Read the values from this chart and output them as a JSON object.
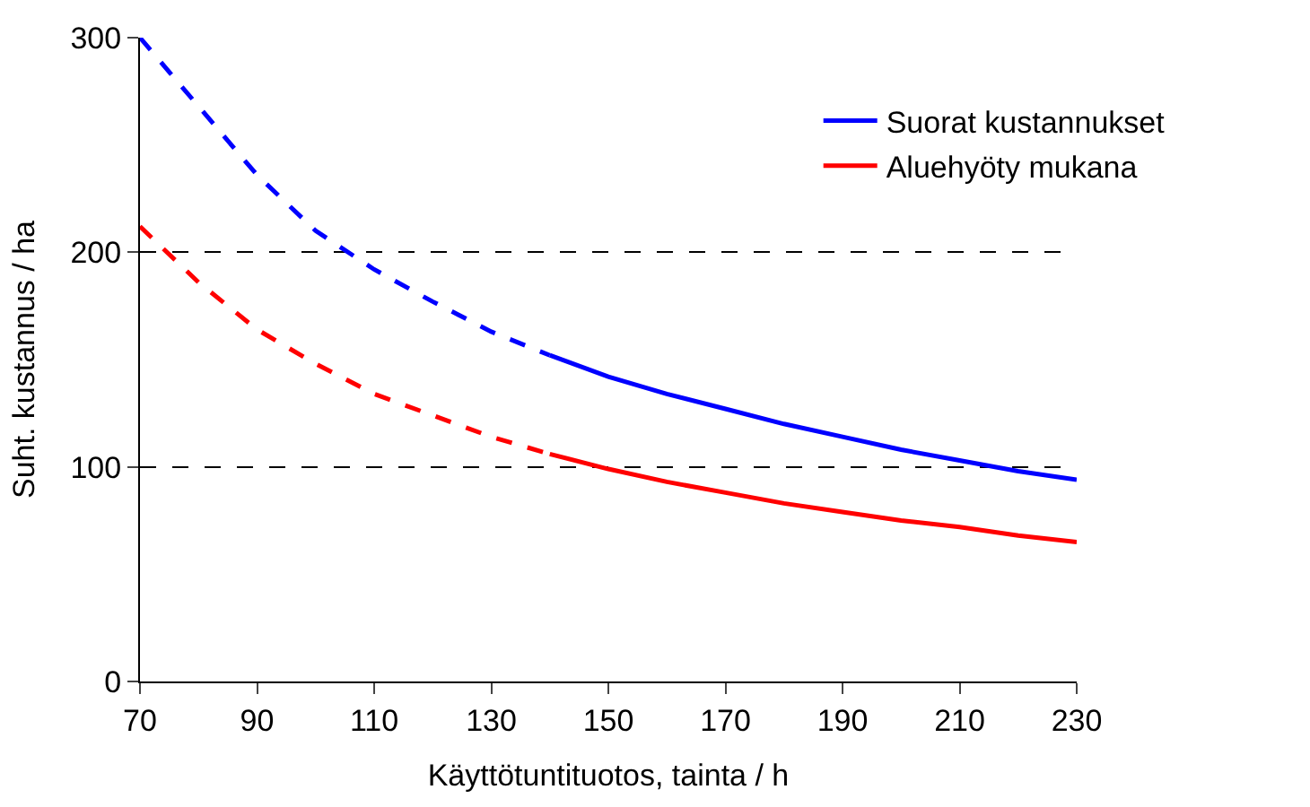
{
  "chart_data": {
    "type": "line",
    "xlabel": "Käyttötuntituotos, tainta / h",
    "ylabel": "Suht. kustannus / ha",
    "xlim": [
      70,
      230
    ],
    "xticks": [
      70,
      90,
      110,
      130,
      150,
      170,
      190,
      210,
      230
    ],
    "ylim": [
      0,
      300
    ],
    "yticks": [
      0,
      100,
      200,
      300
    ],
    "grid": "y",
    "legend": "top right",
    "marker": "none",
    "series": [
      {
        "color": "#0000ff",
        "line_style": "dashed",
        "x": [
          70,
          80,
          90,
          100,
          110,
          120,
          130,
          140
        ],
        "values": [
          300,
          268,
          236,
          210,
          192,
          177,
          163,
          152
        ]
      },
      {
        "name": "Suorat kustannukset",
        "color": "#0000ff",
        "line_style": "solid",
        "x": [
          140,
          150,
          160,
          170,
          180,
          190,
          200,
          210,
          220,
          230
        ],
        "values": [
          152,
          142,
          134,
          127,
          120,
          114,
          108,
          103,
          98,
          94
        ]
      },
      {
        "color": "#ff0000",
        "line_style": "dashed",
        "x": [
          70,
          80,
          90,
          100,
          110,
          120,
          130,
          140
        ],
        "values": [
          212,
          186,
          164,
          148,
          134,
          124,
          114,
          106
        ]
      },
      {
        "name": "Aluehyöty mukana",
        "color": "#ff0000",
        "line_style": "solid",
        "x": [
          140,
          150,
          160,
          170,
          180,
          190,
          200,
          210,
          220,
          230
        ],
        "values": [
          106,
          99,
          93,
          88,
          83,
          79,
          75,
          72,
          68,
          65
        ]
      }
    ]
  }
}
